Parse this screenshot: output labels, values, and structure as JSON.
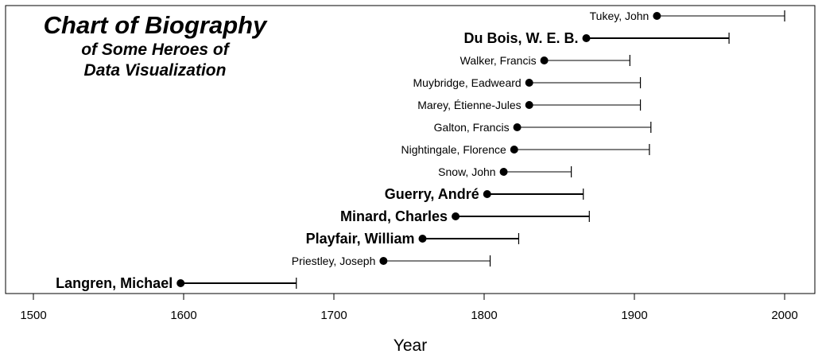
{
  "chart_data": {
    "type": "timeline",
    "title": "Chart of Biography",
    "subtitle_line1": "of Some Heroes of",
    "subtitle_line2": "Data Visualization",
    "xlabel": "Year",
    "xlim": [
      1490,
      2020
    ],
    "xticks": [
      1500,
      1600,
      1700,
      1800,
      1900,
      2000
    ],
    "grid": false,
    "people": [
      {
        "name": "Tukey, John",
        "born": 1915,
        "died": 2000,
        "bold": false
      },
      {
        "name": "Du Bois, W. E. B.",
        "born": 1868,
        "died": 1963,
        "bold": true
      },
      {
        "name": "Walker, Francis",
        "born": 1840,
        "died": 1897,
        "bold": false
      },
      {
        "name": "Muybridge, Eadweard",
        "born": 1830,
        "died": 1904,
        "bold": false
      },
      {
        "name": "Marey, Étienne-Jules",
        "born": 1830,
        "died": 1904,
        "bold": false
      },
      {
        "name": "Galton, Francis",
        "born": 1822,
        "died": 1911,
        "bold": false
      },
      {
        "name": "Nightingale, Florence",
        "born": 1820,
        "died": 1910,
        "bold": false
      },
      {
        "name": "Snow, John",
        "born": 1813,
        "died": 1858,
        "bold": false
      },
      {
        "name": "Guerry, André",
        "born": 1802,
        "died": 1866,
        "bold": true
      },
      {
        "name": "Minard, Charles",
        "born": 1781,
        "died": 1870,
        "bold": true
      },
      {
        "name": "Playfair, William",
        "born": 1759,
        "died": 1823,
        "bold": true
      },
      {
        "name": "Priestley, Joseph",
        "born": 1733,
        "died": 1804,
        "bold": false
      },
      {
        "name": "Langren, Michael",
        "born": 1598,
        "died": 1675,
        "bold": true
      }
    ]
  }
}
